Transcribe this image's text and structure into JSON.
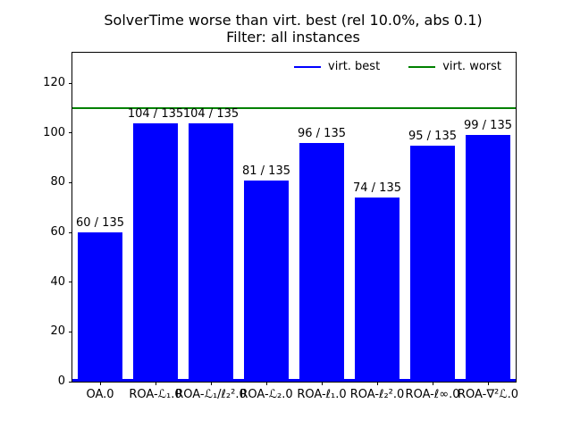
{
  "title": {
    "line1": "SolverTime worse than virt. best (rel 10.0%, abs 0.1)",
    "line2": "Filter: all instances"
  },
  "legend": {
    "items": [
      {
        "label": "virt. best",
        "color": "#0000ff"
      },
      {
        "label": "virt. worst",
        "color": "#008000"
      }
    ]
  },
  "chart_data": {
    "type": "bar",
    "title": "SolverTime worse than virt. best (rel 10.0%, abs 0.1)\nFilter: all instances",
    "categories": [
      "OA.0",
      "ROA-ℒ₁.0",
      "ROA-ℒ₁/ℓ₂².0",
      "ROA-ℒ₂.0",
      "ROA-ℓ₁.0",
      "ROA-ℓ₂².0",
      "ROA-ℓ∞.0",
      "ROA-∇²ℒ.0"
    ],
    "values": [
      60,
      104,
      104,
      81,
      96,
      74,
      95,
      99
    ],
    "total": 135,
    "bar_labels": [
      "60 / 135",
      "104 / 135",
      "104 / 135",
      "81 / 135",
      "96 / 135",
      "74 / 135",
      "95 / 135",
      "99 / 135"
    ],
    "bar_color": "#0000ff",
    "hlines": [
      {
        "name": "virt-best",
        "label": "virt. best",
        "value": 0,
        "color": "#0000ff"
      },
      {
        "name": "virt-worst",
        "label": "virt. worst",
        "value": 110,
        "color": "#008000"
      }
    ],
    "yticks": [
      0,
      20,
      40,
      60,
      80,
      100,
      120
    ],
    "ylim": [
      0,
      132.2
    ],
    "xlabel": "",
    "ylabel": "",
    "grid": false,
    "legend_position": "upper right, horizontal, frameless"
  }
}
